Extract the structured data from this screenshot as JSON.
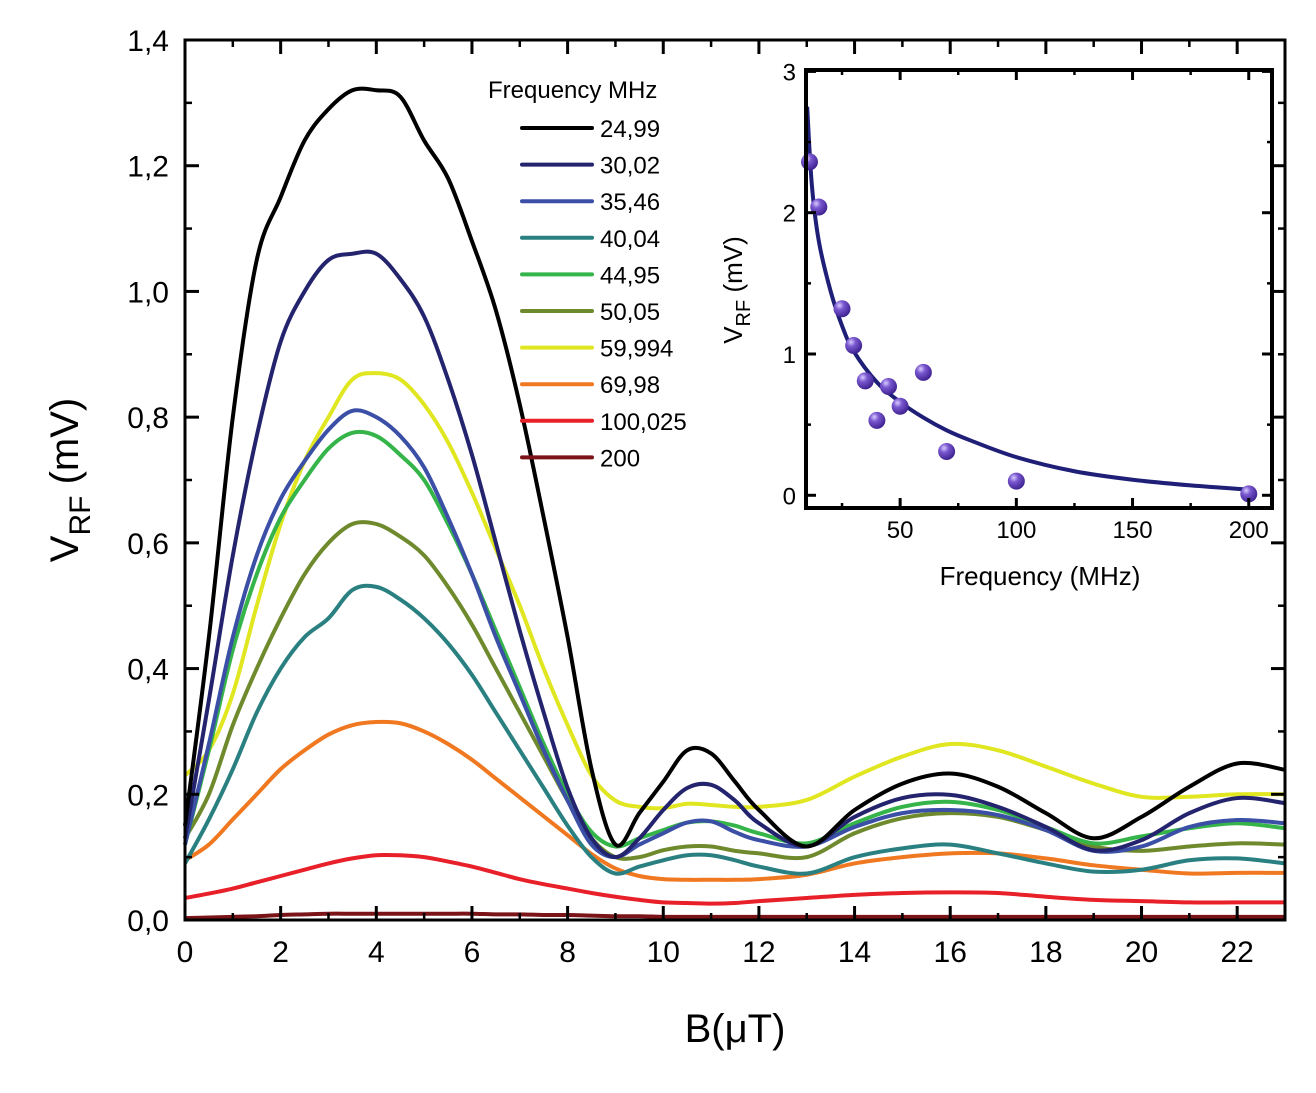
{
  "chart_data": [
    {
      "type": "line",
      "xlabel": "B(μT)",
      "ylabel": {
        "main": "V",
        "sub": "RF",
        "rest": " (mV)"
      },
      "xlim": [
        0,
        23
      ],
      "ylim": [
        0,
        1.4
      ],
      "x_ticks": [
        0,
        2,
        4,
        6,
        8,
        10,
        12,
        14,
        16,
        18,
        20,
        22
      ],
      "x_tick_labels": [
        "0",
        "2",
        "4",
        "6",
        "8",
        "10",
        "12",
        "14",
        "16",
        "18",
        "20",
        "22"
      ],
      "y_ticks": [
        0,
        0.2,
        0.4,
        0.6,
        0.8,
        1.0,
        1.2,
        1.4
      ],
      "y_tick_labels": [
        "0,0",
        "0,2",
        "0,4",
        "0,6",
        "0,8",
        "1,0",
        "1,2",
        "1,4"
      ],
      "grid": false,
      "legend": {
        "title": "Frequency MHz",
        "placement": "top-center"
      },
      "x": [
        0,
        0.5,
        1,
        1.5,
        2,
        2.5,
        3,
        3.5,
        4,
        4.5,
        5,
        5.5,
        6,
        6.5,
        7,
        7.5,
        8,
        8.5,
        9,
        9.5,
        10,
        10.5,
        11,
        11.5,
        12,
        13,
        14,
        15,
        16,
        17,
        18,
        19,
        20,
        21,
        22,
        23
      ],
      "series": [
        {
          "name": "24,99",
          "color": "#000000",
          "values": [
            0.15,
            0.45,
            0.8,
            1.05,
            1.15,
            1.24,
            1.29,
            1.32,
            1.32,
            1.31,
            1.24,
            1.18,
            1.08,
            0.97,
            0.82,
            0.64,
            0.45,
            0.24,
            0.12,
            0.17,
            0.22,
            0.27,
            0.265,
            0.22,
            0.175,
            0.117,
            0.175,
            0.217,
            0.233,
            0.212,
            0.17,
            0.13,
            0.164,
            0.212,
            0.249,
            0.239
          ]
        },
        {
          "name": "30,02",
          "color": "#24246e",
          "values": [
            0.13,
            0.35,
            0.58,
            0.77,
            0.92,
            1.0,
            1.05,
            1.06,
            1.06,
            1.02,
            0.96,
            0.86,
            0.74,
            0.6,
            0.46,
            0.33,
            0.21,
            0.13,
            0.1,
            0.13,
            0.175,
            0.21,
            0.215,
            0.19,
            0.154,
            0.117,
            0.164,
            0.194,
            0.199,
            0.18,
            0.148,
            0.111,
            0.127,
            0.17,
            0.194,
            0.186
          ]
        },
        {
          "name": "35,46",
          "color": "#3a4fa5",
          "values": [
            0.12,
            0.28,
            0.45,
            0.58,
            0.67,
            0.73,
            0.78,
            0.81,
            0.8,
            0.77,
            0.72,
            0.64,
            0.55,
            0.45,
            0.36,
            0.27,
            0.19,
            0.12,
            0.1,
            0.12,
            0.138,
            0.155,
            0.157,
            0.14,
            0.127,
            0.117,
            0.148,
            0.17,
            0.175,
            0.167,
            0.143,
            0.11,
            0.117,
            0.148,
            0.159,
            0.154
          ]
        },
        {
          "name": "40,04",
          "color": "#2a8080",
          "values": [
            0.09,
            0.16,
            0.24,
            0.33,
            0.4,
            0.45,
            0.48,
            0.525,
            0.53,
            0.51,
            0.48,
            0.44,
            0.39,
            0.33,
            0.27,
            0.21,
            0.15,
            0.1,
            0.074,
            0.085,
            0.095,
            0.103,
            0.103,
            0.095,
            0.085,
            0.074,
            0.1,
            0.114,
            0.12,
            0.106,
            0.09,
            0.077,
            0.08,
            0.095,
            0.098,
            0.09
          ]
        },
        {
          "name": "44,95",
          "color": "#35b44a",
          "values": [
            0.12,
            0.27,
            0.43,
            0.55,
            0.64,
            0.7,
            0.75,
            0.775,
            0.77,
            0.74,
            0.7,
            0.63,
            0.55,
            0.46,
            0.37,
            0.28,
            0.2,
            0.14,
            0.117,
            0.13,
            0.143,
            0.155,
            0.157,
            0.15,
            0.138,
            0.122,
            0.154,
            0.18,
            0.188,
            0.175,
            0.148,
            0.122,
            0.133,
            0.146,
            0.154,
            0.146
          ]
        },
        {
          "name": "50,05",
          "color": "#6f8a2d",
          "values": [
            0.13,
            0.2,
            0.31,
            0.4,
            0.48,
            0.55,
            0.6,
            0.63,
            0.63,
            0.61,
            0.58,
            0.53,
            0.47,
            0.4,
            0.33,
            0.26,
            0.19,
            0.13,
            0.1,
            0.1,
            0.111,
            0.117,
            0.117,
            0.11,
            0.106,
            0.1,
            0.138,
            0.162,
            0.17,
            0.164,
            0.143,
            0.117,
            0.11,
            0.117,
            0.122,
            0.12
          ]
        },
        {
          "name": "59,994",
          "color": "#e0e620",
          "values": [
            0.23,
            0.27,
            0.36,
            0.5,
            0.63,
            0.73,
            0.8,
            0.86,
            0.87,
            0.86,
            0.82,
            0.76,
            0.68,
            0.59,
            0.5,
            0.4,
            0.31,
            0.23,
            0.19,
            0.18,
            0.178,
            0.185,
            0.183,
            0.18,
            0.18,
            0.191,
            0.228,
            0.26,
            0.28,
            0.27,
            0.244,
            0.217,
            0.196,
            0.196,
            0.2,
            0.2
          ]
        },
        {
          "name": "69,98",
          "color": "#f07820",
          "values": [
            0.095,
            0.12,
            0.16,
            0.2,
            0.24,
            0.27,
            0.295,
            0.31,
            0.315,
            0.313,
            0.3,
            0.28,
            0.255,
            0.225,
            0.195,
            0.165,
            0.135,
            0.105,
            0.082,
            0.07,
            0.065,
            0.064,
            0.064,
            0.064,
            0.065,
            0.072,
            0.09,
            0.1,
            0.106,
            0.106,
            0.098,
            0.087,
            0.08,
            0.074,
            0.075,
            0.075
          ]
        },
        {
          "name": "100,025",
          "color": "#e8202a",
          "values": [
            0.035,
            0.042,
            0.05,
            0.06,
            0.07,
            0.08,
            0.09,
            0.098,
            0.103,
            0.103,
            0.1,
            0.093,
            0.085,
            0.075,
            0.065,
            0.057,
            0.05,
            0.043,
            0.037,
            0.032,
            0.028,
            0.027,
            0.026,
            0.027,
            0.03,
            0.035,
            0.04,
            0.043,
            0.044,
            0.043,
            0.037,
            0.032,
            0.03,
            0.028,
            0.028,
            0.028
          ]
        },
        {
          "name": "200",
          "color": "#7a1418",
          "values": [
            0.003,
            0.004,
            0.005,
            0.006,
            0.008,
            0.009,
            0.01,
            0.01,
            0.01,
            0.01,
            0.01,
            0.01,
            0.01,
            0.009,
            0.009,
            0.008,
            0.008,
            0.007,
            0.006,
            0.006,
            0.005,
            0.005,
            0.005,
            0.005,
            0.005,
            0.005,
            0.005,
            0.005,
            0.005,
            0.005,
            0.005,
            0.005,
            0.005,
            0.005,
            0.005,
            0.005
          ]
        }
      ]
    },
    {
      "type": "scatter",
      "xlabel": "Frequency (MHz)",
      "ylabel": {
        "main": "V",
        "sub": "RF",
        "rest": " (mV)"
      },
      "xlim": [
        9.5,
        210
      ],
      "ylim": [
        -0.09,
        3.01
      ],
      "x_ticks": [
        50,
        100,
        150,
        200
      ],
      "x_tick_labels": [
        "50",
        "100",
        "150",
        "200"
      ],
      "y_ticks": [
        0,
        1,
        2,
        3
      ],
      "y_tick_labels": [
        "0",
        "1",
        "2",
        "3"
      ],
      "grid": false,
      "marker_color": "#5a3cb0",
      "points": {
        "x": [
          11,
          15,
          25,
          30,
          35,
          40,
          45,
          50,
          60,
          70,
          100,
          200
        ],
        "y": [
          2.36,
          2.04,
          1.32,
          1.06,
          0.81,
          0.53,
          0.77,
          0.63,
          0.87,
          0.31,
          0.1,
          0.01
        ]
      },
      "fit": {
        "color": "#1f1f78",
        "x": [
          10,
          12,
          15,
          20,
          25,
          30,
          40,
          50,
          60,
          70,
          80,
          100,
          125,
          150,
          175,
          200
        ],
        "y": [
          2.75,
          2.2,
          1.8,
          1.45,
          1.2,
          1.02,
          0.8,
          0.66,
          0.55,
          0.46,
          0.39,
          0.27,
          0.17,
          0.11,
          0.07,
          0.04
        ]
      }
    }
  ]
}
